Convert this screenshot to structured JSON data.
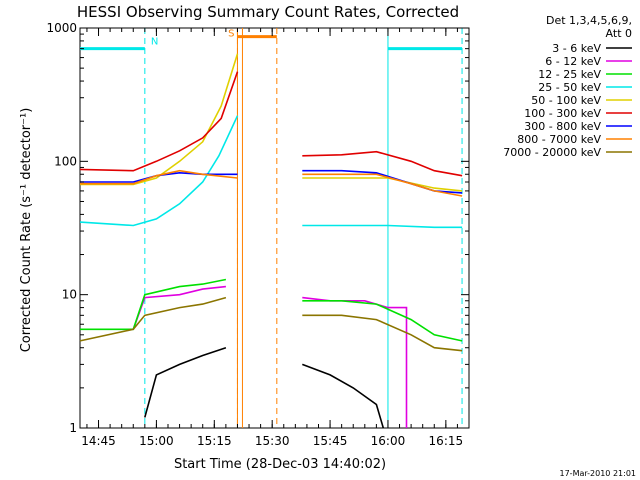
{
  "chart_data": {
    "type": "line",
    "title": "HESSI Observing Summary Count Rates, Corrected",
    "xlabel": "Start Time (28-Dec-03 14:40:02)",
    "ylabel": "Corrected Count Rate (s⁻¹ detector⁻¹)",
    "y_scale": "log",
    "ylim": [
      1,
      1000
    ],
    "xlim_minutes": [
      14.67,
      16.35
    ],
    "x_ticks": [
      {
        "t": 14.75,
        "label": "14:45"
      },
      {
        "t": 15.0,
        "label": "15:00"
      },
      {
        "t": 15.25,
        "label": "15:15"
      },
      {
        "t": 15.5,
        "label": "15:30"
      },
      {
        "t": 15.75,
        "label": "15:45"
      },
      {
        "t": 16.0,
        "label": "16:00"
      },
      {
        "t": 16.25,
        "label": "16:15"
      }
    ],
    "y_ticks": [
      {
        "v": 1,
        "label": "1"
      },
      {
        "v": 10,
        "label": "10"
      },
      {
        "v": 100,
        "label": "100"
      },
      {
        "v": 1000,
        "label": "1000"
      }
    ],
    "legend_header": [
      "Det 1,3,4,5,6,9,",
      "Att 0"
    ],
    "series": [
      {
        "name": "3 - 6 keV",
        "color": "#000000",
        "segments": [
          [
            [
              14.95,
              1.2
            ],
            [
              15.0,
              2.5
            ],
            [
              15.1,
              3.0
            ],
            [
              15.2,
              3.5
            ],
            [
              15.3,
              4.0
            ]
          ],
          [
            [
              15.63,
              3.0
            ],
            [
              15.75,
              2.5
            ],
            [
              15.85,
              2.0
            ],
            [
              15.95,
              1.5
            ],
            [
              15.98,
              1.0
            ]
          ]
        ]
      },
      {
        "name": "6 - 12 keV",
        "color": "#e000e0",
        "segments": [
          [
            [
              14.9,
              5.5
            ],
            [
              14.95,
              9.5
            ],
            [
              15.1,
              10.0
            ],
            [
              15.2,
              11.0
            ],
            [
              15.3,
              11.5
            ]
          ],
          [
            [
              15.63,
              9.5
            ],
            [
              15.75,
              9.0
            ],
            [
              15.9,
              9.0
            ],
            [
              16.0,
              8.0
            ],
            [
              16.08,
              8.0
            ],
            [
              16.08,
              1.0
            ]
          ]
        ]
      },
      {
        "name": "12 - 25 keV",
        "color": "#00e000",
        "segments": [
          [
            [
              14.67,
              5.5
            ],
            [
              14.9,
              5.5
            ],
            [
              14.95,
              10.0
            ],
            [
              15.1,
              11.5
            ],
            [
              15.2,
              12.0
            ],
            [
              15.3,
              13.0
            ]
          ],
          [
            [
              15.63,
              9.0
            ],
            [
              15.8,
              9.0
            ],
            [
              15.95,
              8.5
            ],
            [
              16.1,
              6.5
            ],
            [
              16.2,
              5.0
            ],
            [
              16.32,
              4.5
            ]
          ]
        ]
      },
      {
        "name": "25 - 50 keV",
        "color": "#00e8e8",
        "segments": [
          [
            [
              14.67,
              35
            ],
            [
              14.9,
              33
            ],
            [
              15.0,
              37
            ],
            [
              15.1,
              48
            ],
            [
              15.2,
              70
            ],
            [
              15.27,
              110
            ],
            [
              15.35,
              220
            ]
          ],
          [
            [
              15.63,
              33
            ],
            [
              15.8,
              33
            ],
            [
              16.0,
              33
            ],
            [
              16.2,
              32
            ],
            [
              16.32,
              32
            ]
          ]
        ]
      },
      {
        "name": "50 - 100 keV",
        "color": "#e0d000",
        "segments": [
          [
            [
              14.67,
              67
            ],
            [
              14.9,
              67
            ],
            [
              15.0,
              75
            ],
            [
              15.1,
              100
            ],
            [
              15.2,
              140
            ],
            [
              15.28,
              260
            ],
            [
              15.35,
              640
            ]
          ],
          [
            [
              15.63,
              75
            ],
            [
              15.8,
              75
            ],
            [
              16.0,
              75
            ],
            [
              16.2,
              63
            ],
            [
              16.32,
              60
            ]
          ]
        ]
      },
      {
        "name": "100 - 300 keV",
        "color": "#e00000",
        "segments": [
          [
            [
              14.67,
              87
            ],
            [
              14.9,
              85
            ],
            [
              15.0,
              100
            ],
            [
              15.1,
              120
            ],
            [
              15.2,
              150
            ],
            [
              15.28,
              210
            ],
            [
              15.35,
              470
            ]
          ],
          [
            [
              15.63,
              110
            ],
            [
              15.8,
              112
            ],
            [
              15.95,
              118
            ],
            [
              16.1,
              100
            ],
            [
              16.2,
              85
            ],
            [
              16.32,
              78
            ]
          ]
        ]
      },
      {
        "name": "300 - 800 keV",
        "color": "#0000ff",
        "segments": [
          [
            [
              14.67,
              70
            ],
            [
              14.9,
              70
            ],
            [
              15.0,
              78
            ],
            [
              15.1,
              82
            ],
            [
              15.2,
              80
            ],
            [
              15.35,
              80
            ]
          ],
          [
            [
              15.63,
              85
            ],
            [
              15.8,
              85
            ],
            [
              15.95,
              82
            ],
            [
              16.1,
              68
            ],
            [
              16.2,
              60
            ],
            [
              16.32,
              58
            ]
          ]
        ]
      },
      {
        "name": "800 - 7000 keV",
        "color": "#ff8000",
        "segments": [
          [
            [
              14.67,
              68
            ],
            [
              14.9,
              68
            ],
            [
              15.0,
              78
            ],
            [
              15.1,
              85
            ],
            [
              15.2,
              80
            ],
            [
              15.35,
              75
            ]
          ],
          [
            [
              15.63,
              80
            ],
            [
              15.8,
              80
            ],
            [
              15.95,
              80
            ],
            [
              16.1,
              68
            ],
            [
              16.2,
              60
            ],
            [
              16.32,
              55
            ]
          ]
        ]
      },
      {
        "name": "7000 - 20000 keV",
        "color": "#8b7500",
        "segments": [
          [
            [
              14.67,
              4.5
            ],
            [
              14.9,
              5.5
            ],
            [
              14.95,
              7.0
            ],
            [
              15.1,
              8.0
            ],
            [
              15.2,
              8.5
            ],
            [
              15.3,
              9.5
            ]
          ],
          [
            [
              15.63,
              7.0
            ],
            [
              15.8,
              7.0
            ],
            [
              15.95,
              6.5
            ],
            [
              16.1,
              5.0
            ],
            [
              16.2,
              4.0
            ],
            [
              16.32,
              3.8
            ]
          ]
        ]
      }
    ],
    "annotations": {
      "night": {
        "label": "N",
        "color": "#00e8e8",
        "value": 700,
        "bars": [
          [
            14.67,
            14.95
          ],
          [
            16.0,
            16.32
          ]
        ],
        "lines": [
          14.95,
          16.32
        ],
        "solid_lines": [
          16.0
        ]
      },
      "saa": {
        "label": "S",
        "color": "#ff8000",
        "value": 700,
        "bar": [
          15.35,
          15.52
        ],
        "lines": [
          15.35,
          15.52
        ],
        "solid_lines": [
          15.35
        ]
      }
    },
    "timestamp": "17-Mar-2010 21:01"
  }
}
